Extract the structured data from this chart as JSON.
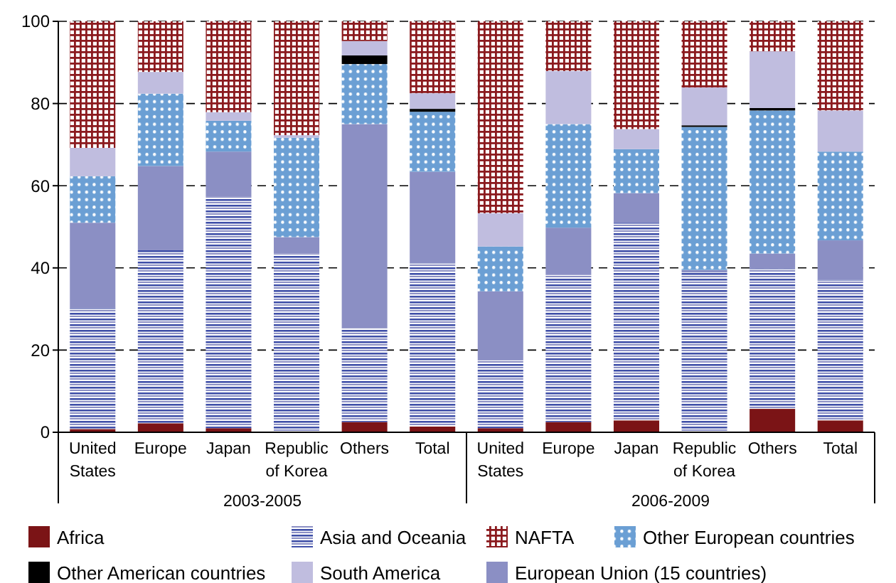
{
  "chart_data": {
    "type": "bar",
    "stacked": true,
    "categories": [
      "United States",
      "Europe",
      "Japan",
      "Republic of Korea",
      "Others",
      "Total",
      "United States",
      "Europe",
      "Japan",
      "Republic of Korea",
      "Others",
      "Total"
    ],
    "annotations": [
      "2003-2005",
      "2006-2009"
    ],
    "series": [
      {
        "name": "Africa",
        "color": "#7b1416",
        "values": [
          0.8,
          2.2,
          1.0,
          0,
          2.5,
          1.4,
          1.0,
          2.5,
          2.9,
          0,
          5.7,
          2.9
        ]
      },
      {
        "name": "Asia and Oceania",
        "color": "#3f4fa8",
        "values": [
          29.4,
          42.1,
          56.3,
          43.5,
          22.9,
          39.7,
          16.5,
          35.8,
          48.1,
          38.9,
          34.1,
          34.2
        ]
      },
      {
        "name": "European Union (15 countries)",
        "color": "#8b8fc4",
        "values": [
          20.8,
          20.5,
          11.0,
          4.0,
          49.6,
          22.3,
          16.8,
          11.5,
          7.2,
          0.6,
          3.7,
          9.6
        ]
      },
      {
        "name": "Other European countries",
        "color": "#6b9fd4",
        "values": [
          11.3,
          17.6,
          7.5,
          24.2,
          14.6,
          14.6,
          10.9,
          25.2,
          10.7,
          34.8,
          34.8,
          21.6
        ]
      },
      {
        "name": "Other American countries",
        "color": "#000000",
        "values": [
          0,
          0,
          0,
          0,
          2.1,
          0.7,
          0,
          0,
          0,
          0.4,
          0.6,
          0
        ]
      },
      {
        "name": "South America",
        "color": "#c0bddf",
        "values": [
          6.9,
          5.3,
          2.1,
          0.6,
          3.5,
          3.8,
          8.1,
          12.9,
          4.9,
          9.2,
          13.8,
          10.0
        ]
      },
      {
        "name": "NAFTA",
        "color": "#8b1a1e",
        "values": [
          30.8,
          12.3,
          22.1,
          27.7,
          4.8,
          17.5,
          46.7,
          12.1,
          26.2,
          16.1,
          7.3,
          21.7
        ]
      }
    ],
    "ylim": [
      0,
      100
    ],
    "yticks": [
      0,
      20,
      40,
      60,
      80,
      100
    ],
    "grid": "y",
    "legend": "bottom"
  }
}
